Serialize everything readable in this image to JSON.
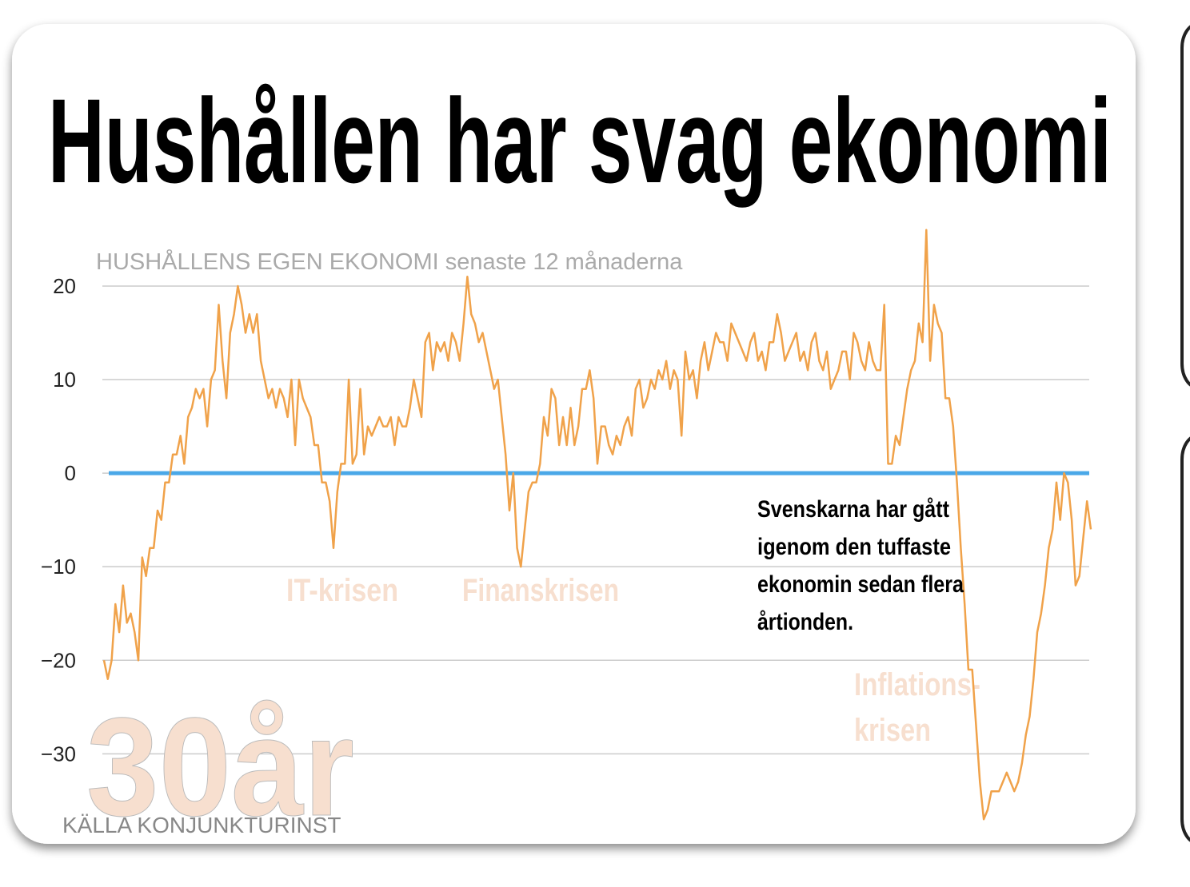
{
  "chart_data": {
    "type": "line",
    "title": "Hushållen har svag ekonomi",
    "subtitle": "HUSHÅLLENS EGEN EKONOMI senaste 12 månaderna",
    "source": "KÄLLA KONJUNKTURINST",
    "watermark": "30år",
    "annotations": [
      "IT-krisen",
      "Finanskrisen"
    ],
    "inflation_note": [
      "Inflations-",
      "krisen"
    ],
    "callout": [
      "Svenskarna har gått",
      "igenom den tuffaste",
      "ekonomin sedan flera",
      "årtionden."
    ],
    "ylim": [
      -38,
      27
    ],
    "yticks": [
      {
        "value": -30,
        "label": "−30"
      },
      {
        "value": -20,
        "label": "−20"
      },
      {
        "value": -10,
        "label": "−10"
      },
      0,
      10,
      20
    ],
    "grid": true,
    "zero_line": {
      "value": 0,
      "color": "#4aa8e8"
    },
    "series": [
      {
        "color": "#f0a24a",
        "values": [
          -20,
          -22,
          -20,
          -14,
          -17,
          -12,
          -16,
          -15,
          -17,
          -20,
          -9,
          -11,
          -8,
          -8,
          -4,
          -5,
          -1,
          -1,
          2,
          2,
          4,
          1,
          6,
          7,
          9,
          8,
          9,
          5,
          10,
          11,
          18,
          12,
          8,
          15,
          17,
          20,
          18,
          15,
          17,
          15,
          17,
          12,
          10,
          8,
          9,
          7,
          9,
          8,
          6,
          10,
          3,
          10,
          8,
          7,
          6,
          3,
          3,
          -1,
          -1,
          -3,
          -8,
          -2,
          1,
          1,
          10,
          1,
          2,
          9,
          2,
          5,
          4,
          5,
          6,
          5,
          5,
          6,
          3,
          6,
          5,
          5,
          7,
          10,
          8,
          6,
          14,
          15,
          11,
          14,
          13,
          14,
          12,
          15,
          14,
          12,
          16,
          21,
          17,
          16,
          14,
          15,
          13,
          11,
          9,
          10,
          6,
          2,
          -4,
          0,
          -8,
          -10,
          -6,
          -2,
          -1,
          -1,
          1,
          6,
          4,
          9,
          8,
          3,
          6,
          3,
          7,
          3,
          5,
          9,
          9,
          11,
          8,
          1,
          5,
          5,
          3,
          2,
          4,
          3,
          5,
          6,
          4,
          9,
          10,
          7,
          8,
          10,
          9,
          11,
          10,
          12,
          9,
          11,
          10,
          4,
          13,
          10,
          11,
          8,
          12,
          14,
          11,
          13,
          15,
          14,
          14,
          12,
          16,
          15,
          14,
          13,
          12,
          14,
          15,
          12,
          13,
          11,
          14,
          14,
          17,
          15,
          12,
          13,
          14,
          15,
          12,
          13,
          11,
          14,
          15,
          12,
          11,
          13,
          9,
          10,
          11,
          13,
          13,
          10,
          15,
          14,
          12,
          11,
          14,
          12,
          11,
          11,
          18,
          1,
          1,
          4,
          3,
          6,
          9,
          11,
          12,
          16,
          14,
          26,
          12,
          18,
          16,
          15,
          8,
          8,
          5,
          -1,
          -8,
          -14,
          -21,
          -21,
          -27,
          -33,
          -37,
          -36,
          -34,
          -34,
          -34,
          -33,
          -32,
          -33,
          -34,
          -33,
          -31,
          -28,
          -26,
          -22,
          -17,
          -15,
          -12,
          -8,
          -6,
          -1,
          -5,
          0,
          -1,
          -5,
          -12,
          -11,
          -7,
          -3,
          -6
        ]
      }
    ]
  }
}
